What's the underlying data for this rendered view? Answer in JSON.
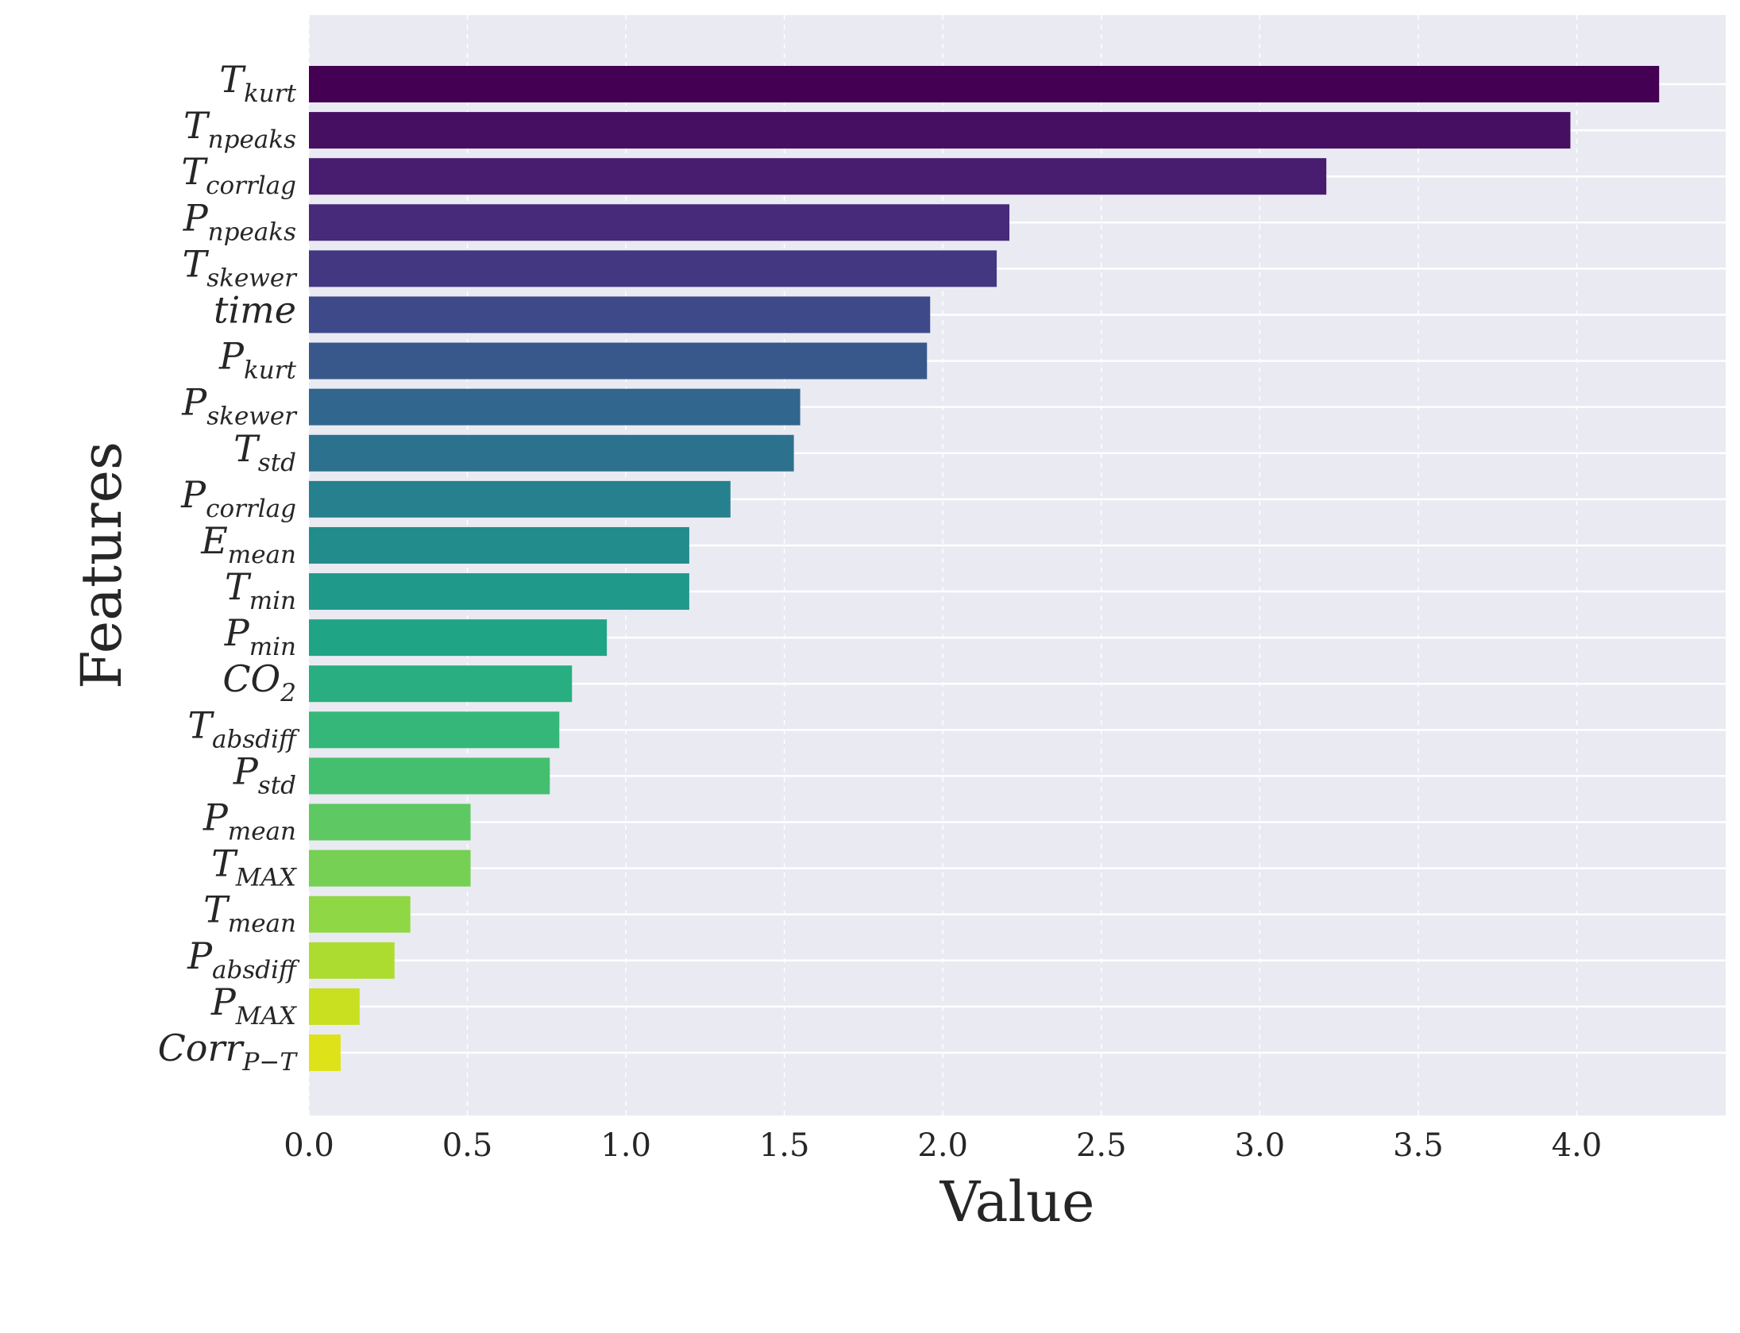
{
  "chart_data": {
    "type": "bar",
    "orientation": "horizontal",
    "title": "",
    "xlabel": "Value",
    "ylabel": "Features",
    "xlim": [
      0,
      4.47
    ],
    "xticks": [
      "0.0",
      "0.5",
      "1.0",
      "1.5",
      "2.0",
      "2.5",
      "3.0",
      "3.5",
      "4.0"
    ],
    "grid": true,
    "categories": [
      {
        "base": "T",
        "sub": "kurt",
        "value": 4.26,
        "color": "#440154"
      },
      {
        "base": "T",
        "sub": "npeaks",
        "value": 3.98,
        "color": "#470f62"
      },
      {
        "base": "T",
        "sub": "corrlag",
        "value": 3.21,
        "color": "#481d6f"
      },
      {
        "base": "P",
        "sub": "npeaks",
        "value": 2.21,
        "color": "#472a7a"
      },
      {
        "base": "T",
        "sub": "skewer",
        "value": 2.17,
        "color": "#433781"
      },
      {
        "base": "time",
        "sub": "",
        "value": 1.96,
        "color": "#3e4989"
      },
      {
        "base": "P",
        "sub": "kurt",
        "value": 1.95,
        "color": "#38588c"
      },
      {
        "base": "P",
        "sub": "skewer",
        "value": 1.55,
        "color": "#31668e"
      },
      {
        "base": "T",
        "sub": "std",
        "value": 1.53,
        "color": "#2c728e"
      },
      {
        "base": "P",
        "sub": "corrlag",
        "value": 1.33,
        "color": "#27808e"
      },
      {
        "base": "E",
        "sub": "mean",
        "value": 1.2,
        "color": "#228c8d"
      },
      {
        "base": "T",
        "sub": "min",
        "value": 1.2,
        "color": "#1f9a8a"
      },
      {
        "base": "P",
        "sub": "min",
        "value": 0.94,
        "color": "#20a486"
      },
      {
        "base": "CO",
        "sub": "2",
        "value": 0.83,
        "color": "#28ae80"
      },
      {
        "base": "T",
        "sub": "absdiff",
        "value": 0.79,
        "color": "#35b779"
      },
      {
        "base": "P",
        "sub": "std",
        "value": 0.76,
        "color": "#44bf70"
      },
      {
        "base": "P",
        "sub": "mean",
        "value": 0.51,
        "color": "#5ec962"
      },
      {
        "base": "T",
        "sub": "MAX",
        "value": 0.51,
        "color": "#75d054"
      },
      {
        "base": "T",
        "sub": "mean",
        "value": 0.32,
        "color": "#8fd744"
      },
      {
        "base": "P",
        "sub": "absdiff",
        "value": 0.27,
        "color": "#addc30"
      },
      {
        "base": "P",
        "sub": "MAX",
        "value": 0.16,
        "color": "#c8e020"
      },
      {
        "base": "Corr",
        "sub": "P−T",
        "value": 0.1,
        "color": "#dde318"
      }
    ]
  }
}
